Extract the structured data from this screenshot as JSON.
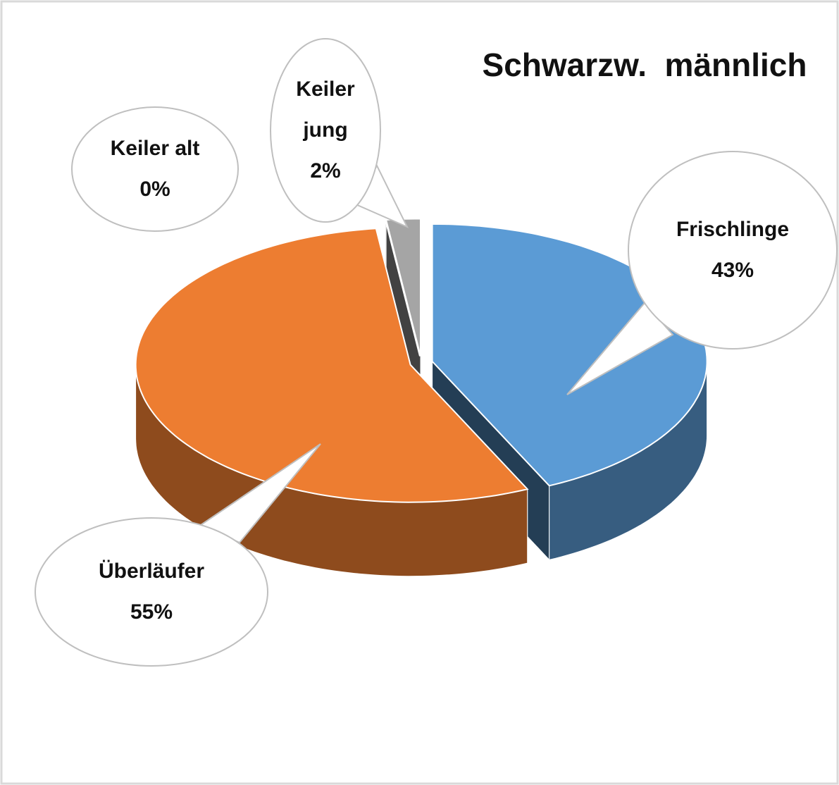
{
  "chart_data": {
    "type": "pie",
    "title": "Schwarzw.  männlich",
    "categories": [
      "Frischlinge",
      "Überläufer",
      "Keiler alt",
      "Keiler jung"
    ],
    "values": [
      43,
      55,
      0,
      2
    ],
    "value_labels": [
      "43%",
      "55%",
      "0%",
      "2%"
    ],
    "colors": [
      "#5b9bd5",
      "#ed7d31",
      "#404040",
      "#a5a5a5"
    ]
  }
}
